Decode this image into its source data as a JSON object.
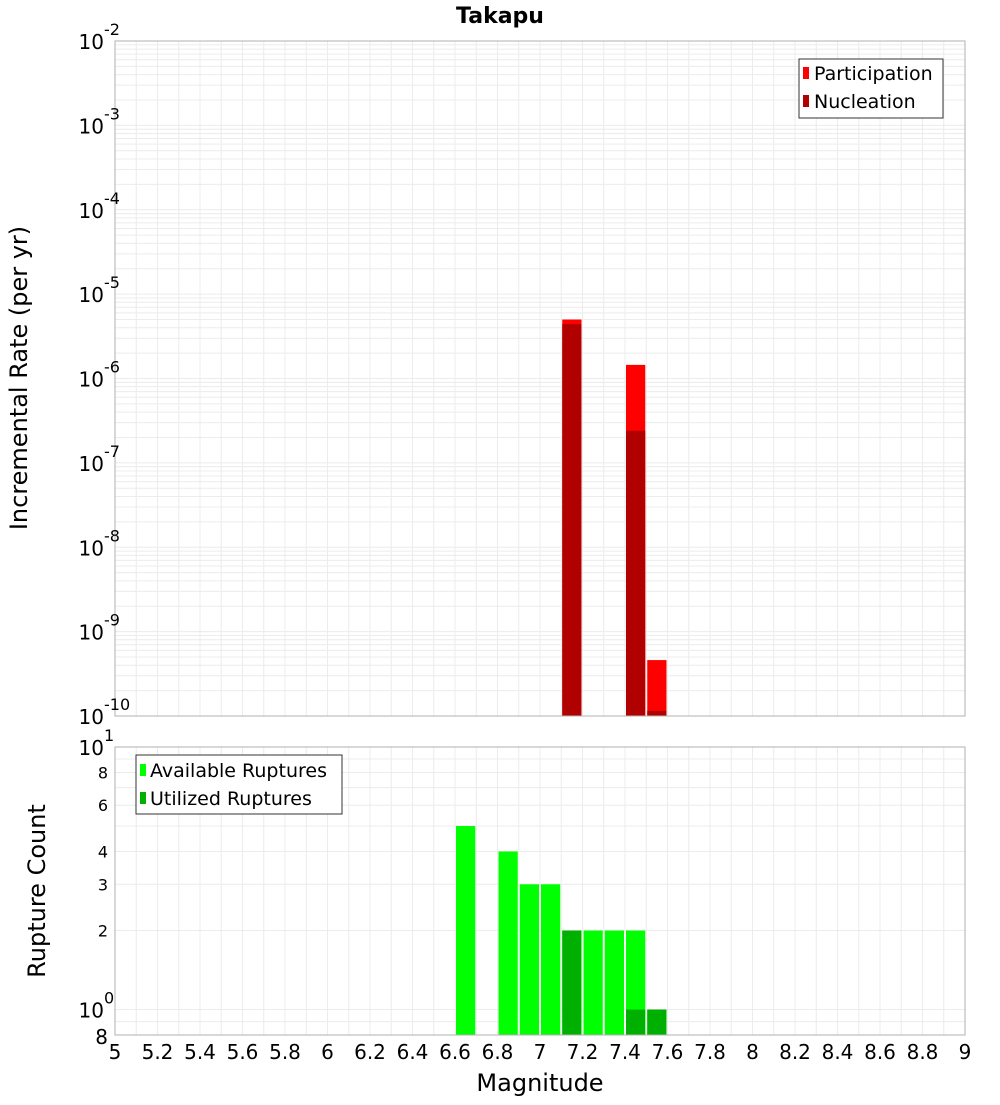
{
  "chart_data": [
    {
      "type": "bar",
      "title": "Takapu",
      "ylabel": "Incremental Rate (per yr)",
      "xlim": [
        5,
        9
      ],
      "ylim": [
        1e-10,
        0.01
      ],
      "yscale": "log",
      "grid": true,
      "legend": "top-right",
      "y_tick_mantissa": "10",
      "y_ticks": [
        {
          "exp": "-10"
        },
        {
          "exp": "-9"
        },
        {
          "exp": "-8"
        },
        {
          "exp": "-7"
        },
        {
          "exp": "-6"
        },
        {
          "exp": "-5"
        },
        {
          "exp": "-4"
        },
        {
          "exp": "-3"
        },
        {
          "exp": "-2"
        }
      ],
      "bar_width": 0.1,
      "series": [
        {
          "name": "Participation",
          "color": "#ff0000",
          "points": [
            {
              "x": 7.15,
              "y": 5e-06
            },
            {
              "x": 7.45,
              "y": 1.45e-06
            },
            {
              "x": 7.55,
              "y": 4.6e-10
            }
          ]
        },
        {
          "name": "Nucleation",
          "color": "#b00000",
          "points": [
            {
              "x": 7.15,
              "y": 4.4e-06
            },
            {
              "x": 7.45,
              "y": 2.4e-07
            },
            {
              "x": 7.55,
              "y": 1.15e-10
            }
          ]
        }
      ]
    },
    {
      "type": "bar",
      "ylabel": "Rupture Count",
      "xlabel": "Magnitude",
      "xlim": [
        5,
        9
      ],
      "ylim": [
        0.8,
        10
      ],
      "yscale": "log",
      "grid": true,
      "legend": "top-left",
      "x_ticks": [
        "5",
        "5.2",
        "5.4",
        "5.6",
        "5.8",
        "6",
        "6.2",
        "6.4",
        "6.6",
        "6.8",
        "7",
        "7.2",
        "7.4",
        "7.6",
        "7.8",
        "8",
        "8.2",
        "8.4",
        "8.6",
        "8.8",
        "9"
      ],
      "y_ticks_minor": [
        "2",
        "3",
        "4",
        "6",
        "8"
      ],
      "y_ticks_major": [
        {
          "mantissa": "10",
          "exp": "0"
        },
        {
          "mantissa": "10",
          "exp": "1"
        }
      ],
      "y_bottom_label": "8",
      "bar_width": 0.1,
      "series": [
        {
          "name": "Available Ruptures",
          "color": "#00ff00",
          "points": [
            {
              "x": 6.65,
              "y": 5
            },
            {
              "x": 6.85,
              "y": 4
            },
            {
              "x": 6.95,
              "y": 3
            },
            {
              "x": 7.05,
              "y": 3
            },
            {
              "x": 7.15,
              "y": 2
            },
            {
              "x": 7.25,
              "y": 2
            },
            {
              "x": 7.35,
              "y": 2
            },
            {
              "x": 7.45,
              "y": 2
            },
            {
              "x": 7.55,
              "y": 1
            }
          ]
        },
        {
          "name": "Utilized Ruptures",
          "color": "#00b000",
          "points": [
            {
              "x": 7.15,
              "y": 2
            },
            {
              "x": 7.45,
              "y": 1
            },
            {
              "x": 7.55,
              "y": 1
            }
          ]
        }
      ]
    }
  ]
}
